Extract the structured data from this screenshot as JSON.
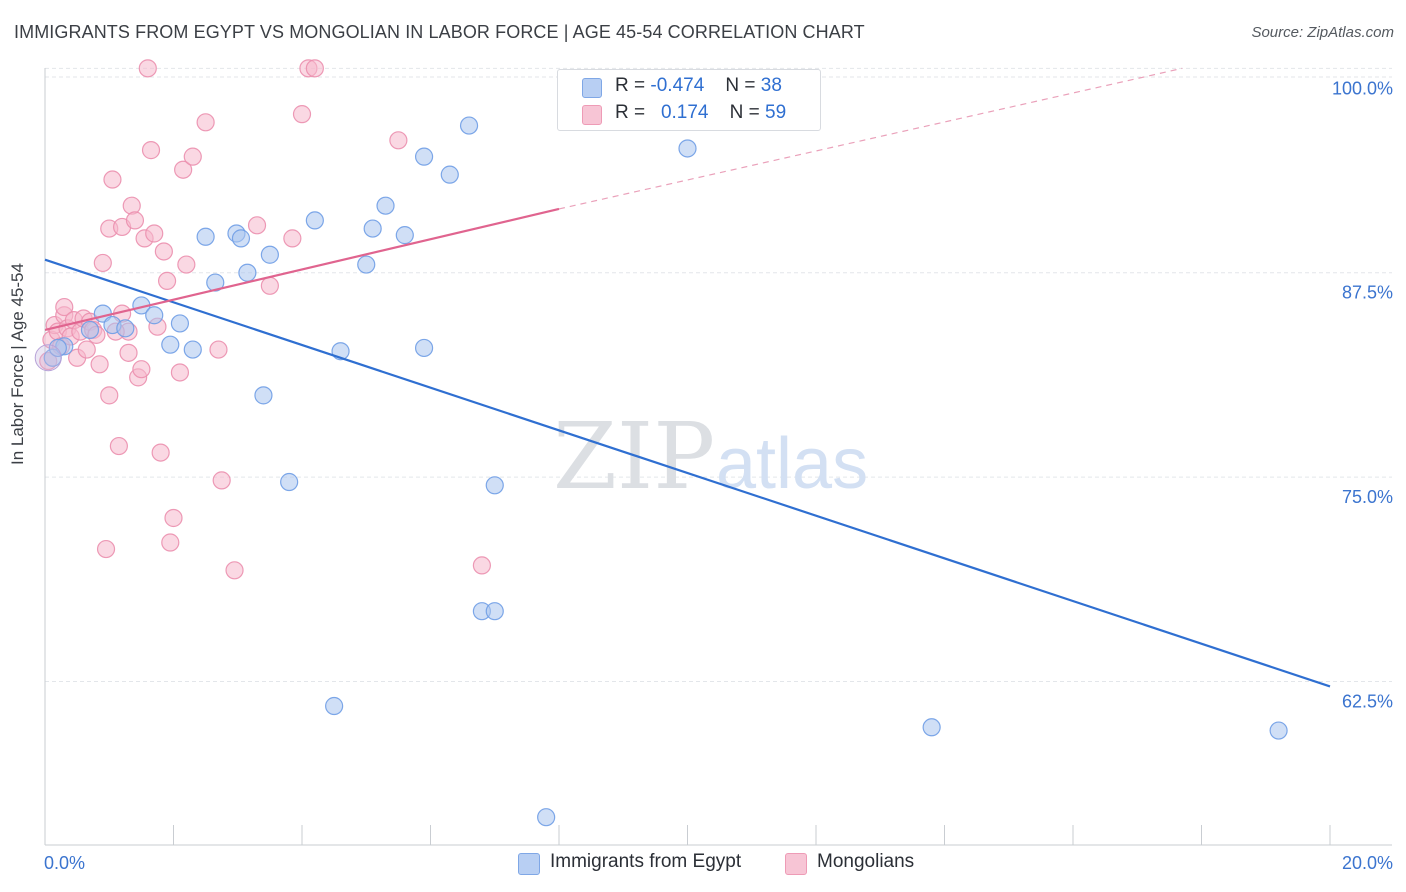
{
  "header": {
    "title": "IMMIGRANTS FROM EGYPT VS MONGOLIAN IN LABOR FORCE | AGE 45-54 CORRELATION CHART",
    "source": "Source: ZipAtlas.com"
  },
  "watermark": {
    "zip": "ZIP",
    "atlas": "atlas"
  },
  "legend": {
    "rows": [
      {
        "r_label": "R =",
        "r_value": "-0.474",
        "n_label": "N =",
        "n_value": "38",
        "color": "#aac4ef"
      },
      {
        "r_label": "R =",
        "r_value": "0.174",
        "n_label": "N =",
        "n_value": "59",
        "color": "#f5b8cc"
      }
    ]
  },
  "bottom_legend": [
    {
      "label": "Immigrants from Egypt",
      "color": "#aac4ef"
    },
    {
      "label": "Mongolians",
      "color": "#f5b8cc"
    }
  ],
  "chart_data": {
    "type": "scatter",
    "title": "IMMIGRANTS FROM EGYPT VS MONGOLIAN IN LABOR FORCE | AGE 45-54 CORRELATION CHART",
    "xlabel": "",
    "ylabel": "In Labor Force | Age 45-54",
    "xlim": [
      0,
      20
    ],
    "ylim": [
      52.5,
      101
    ],
    "x_ticks": [
      0,
      2,
      4,
      6,
      8,
      10,
      12,
      14,
      16,
      18,
      20
    ],
    "x_tick_labels": {
      "min": "0.0%",
      "max": "20.0%"
    },
    "y_ticks": [
      62.5,
      75.0,
      87.5,
      100.0
    ],
    "y_tick_labels": [
      "62.5%",
      "75.0%",
      "87.5%",
      "100.0%"
    ],
    "grid": true,
    "legend_placement": "top-center",
    "series": [
      {
        "name": "Immigrants from Egypt",
        "color": "#6f9de6",
        "fill": "#aac4ef",
        "trend": {
          "x": [
            0,
            20
          ],
          "y": [
            88.3,
            62.2
          ],
          "color": "#2f6fd1",
          "dash_beyond": null
        },
        "points": [
          [
            0.12,
            82.3
          ],
          [
            0.3,
            83.0
          ],
          [
            0.7,
            84.0
          ],
          [
            0.9,
            85.0
          ],
          [
            1.05,
            84.3
          ],
          [
            1.25,
            84.1
          ],
          [
            1.5,
            85.5
          ],
          [
            1.7,
            84.9
          ],
          [
            1.95,
            83.1
          ],
          [
            2.1,
            84.4
          ],
          [
            2.3,
            82.8
          ],
          [
            2.5,
            89.7
          ],
          [
            2.65,
            86.9
          ],
          [
            2.98,
            89.9
          ],
          [
            3.05,
            89.6
          ],
          [
            3.15,
            87.5
          ],
          [
            3.5,
            88.6
          ],
          [
            3.4,
            80.0
          ],
          [
            3.8,
            74.7
          ],
          [
            4.2,
            90.7
          ],
          [
            4.5,
            61.0
          ],
          [
            4.6,
            82.7
          ],
          [
            5.0,
            88.0
          ],
          [
            5.1,
            90.2
          ],
          [
            5.3,
            91.6
          ],
          [
            5.6,
            89.8
          ],
          [
            5.9,
            94.6
          ],
          [
            5.9,
            82.9
          ],
          [
            6.3,
            93.5
          ],
          [
            6.6,
            96.5
          ],
          [
            6.8,
            66.8
          ],
          [
            7.0,
            66.8
          ],
          [
            7.0,
            74.5
          ],
          [
            7.8,
            54.2
          ],
          [
            10.0,
            95.1
          ],
          [
            13.8,
            59.7
          ],
          [
            19.2,
            59.5
          ],
          [
            0.2,
            82.9
          ]
        ]
      },
      {
        "name": "Mongolians",
        "color": "#eb8fae",
        "fill": "#f5b8cc",
        "trend": {
          "x": [
            0,
            8
          ],
          "y": [
            84.0,
            91.4
          ],
          "color": "#e0648f",
          "dash_to": [
            17.7,
            100.0
          ]
        },
        "points": [
          [
            0.05,
            82.1
          ],
          [
            0.1,
            83.4
          ],
          [
            0.15,
            84.3
          ],
          [
            0.2,
            83.9
          ],
          [
            0.25,
            83.0
          ],
          [
            0.3,
            84.9
          ],
          [
            0.3,
            85.4
          ],
          [
            0.35,
            84.1
          ],
          [
            0.4,
            83.6
          ],
          [
            0.45,
            84.6
          ],
          [
            0.5,
            82.3
          ],
          [
            0.55,
            83.9
          ],
          [
            0.6,
            84.7
          ],
          [
            0.65,
            82.8
          ],
          [
            0.7,
            84.5
          ],
          [
            0.75,
            84.0
          ],
          [
            0.8,
            83.7
          ],
          [
            0.85,
            81.9
          ],
          [
            0.9,
            88.1
          ],
          [
            0.95,
            70.6
          ],
          [
            1.0,
            80.0
          ],
          [
            1.0,
            90.2
          ],
          [
            1.05,
            93.2
          ],
          [
            1.15,
            76.9
          ],
          [
            1.2,
            85.0
          ],
          [
            1.2,
            90.3
          ],
          [
            1.3,
            83.9
          ],
          [
            1.3,
            82.6
          ],
          [
            1.35,
            91.6
          ],
          [
            1.4,
            90.7
          ],
          [
            1.45,
            81.1
          ],
          [
            1.5,
            81.6
          ],
          [
            1.55,
            89.6
          ],
          [
            1.6,
            100.0
          ],
          [
            1.65,
            95.0
          ],
          [
            1.7,
            89.9
          ],
          [
            1.75,
            84.2
          ],
          [
            1.8,
            76.5
          ],
          [
            1.85,
            88.8
          ],
          [
            1.9,
            87.0
          ],
          [
            1.95,
            71.0
          ],
          [
            2.0,
            72.5
          ],
          [
            2.1,
            81.4
          ],
          [
            2.15,
            93.8
          ],
          [
            2.2,
            88.0
          ],
          [
            2.3,
            94.6
          ],
          [
            2.5,
            96.7
          ],
          [
            2.7,
            82.8
          ],
          [
            2.75,
            74.8
          ],
          [
            2.95,
            69.3
          ],
          [
            3.3,
            90.4
          ],
          [
            3.5,
            86.7
          ],
          [
            3.85,
            89.6
          ],
          [
            4.0,
            97.2
          ],
          [
            4.1,
            100.0
          ],
          [
            4.2,
            100.0
          ],
          [
            5.5,
            95.6
          ],
          [
            6.8,
            69.6
          ],
          [
            1.1,
            83.9
          ]
        ]
      }
    ]
  }
}
